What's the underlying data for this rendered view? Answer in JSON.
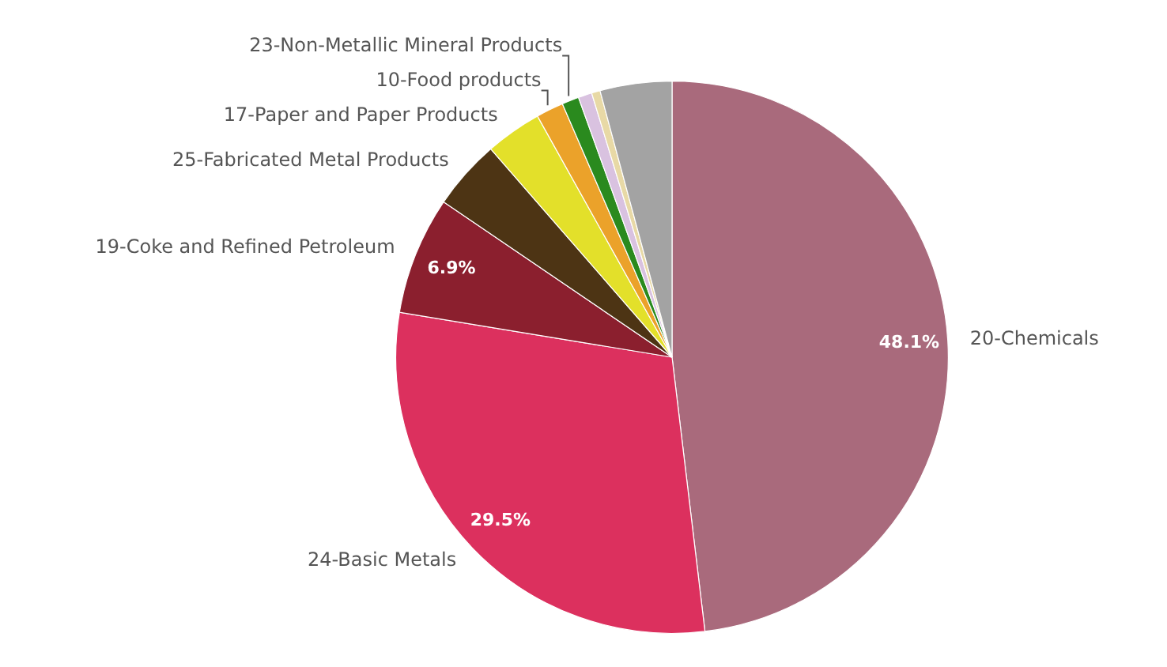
{
  "chart_data": {
    "type": "pie",
    "categories": [
      "20-Chemicals",
      "24-Basic Metals",
      "19-Coke and Refined Petroleum",
      "25-Fabricated Metal Products",
      "17-Paper and Paper Products",
      "10-Food products",
      "23-Non-Metallic Mineral Products",
      null,
      null,
      null
    ],
    "values": [
      48.1,
      29.5,
      6.9,
      4.1,
      3.3,
      1.6,
      1.0,
      0.8,
      0.5,
      4.2
    ],
    "colors": [
      "#a96a7c",
      "#dc305e",
      "#8b1f2e",
      "#4d3414",
      "#e3e02a",
      "#eba22a",
      "#2a8a1e",
      "#d9c2e0",
      "#e8d9a6",
      "#a3a3a3"
    ],
    "value_labels": [
      "48.1%",
      "29.5%",
      "6.9%",
      null,
      null,
      null,
      null,
      null,
      null,
      null
    ],
    "legend": false
  }
}
